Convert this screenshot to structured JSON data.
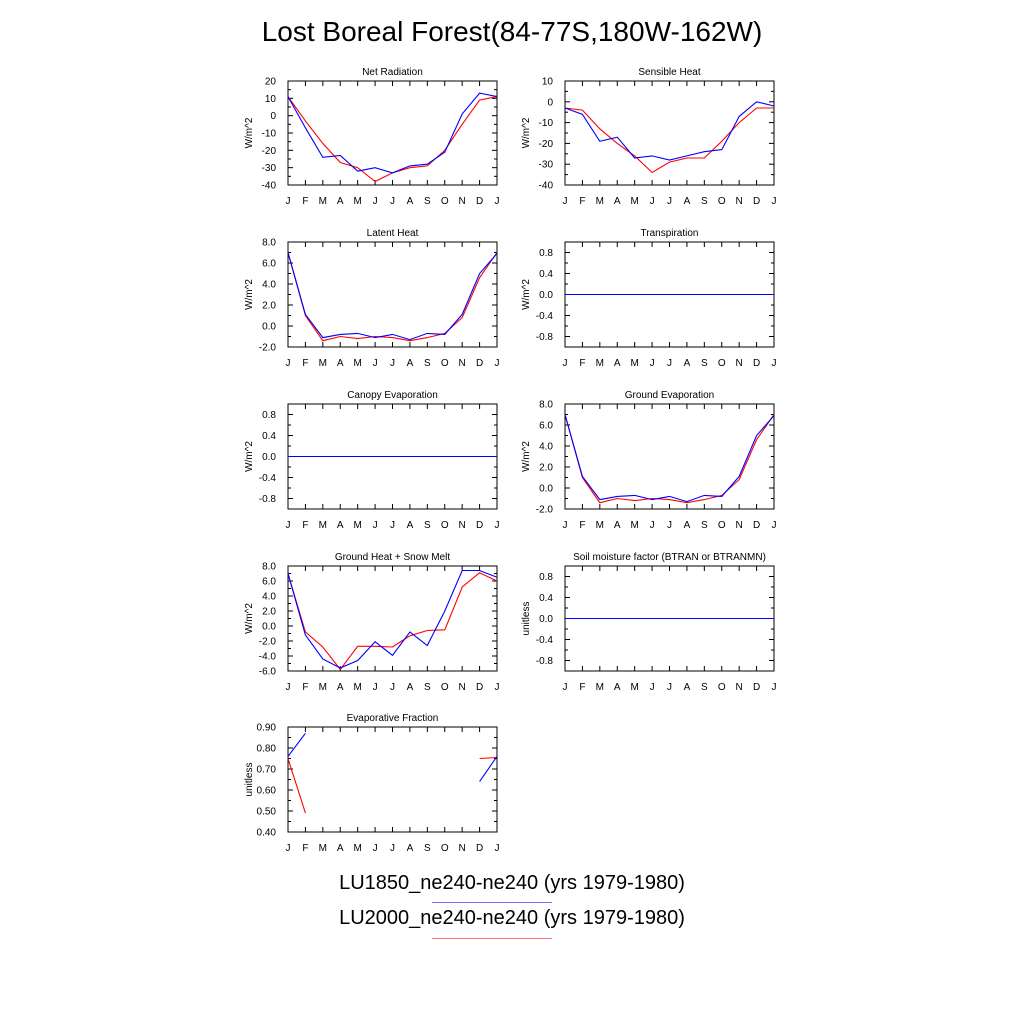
{
  "title": "Lost Boreal Forest(84-77S,180W-162W)",
  "months": [
    "J",
    "F",
    "M",
    "A",
    "M",
    "J",
    "J",
    "A",
    "S",
    "O",
    "N",
    "D",
    "J"
  ],
  "colors": {
    "series1": "#0000ff",
    "series2": "#ff0000"
  },
  "legend": [
    {
      "label": "LU1850_ne240-ne240 (yrs 1979-1980)",
      "color": "#0000ff"
    },
    {
      "label": "LU2000_ne240-ne240 (yrs 1979-1980)",
      "color": "#ff0000"
    }
  ],
  "chart_data": [
    {
      "type": "line",
      "title": "Net Radiation",
      "ylabel": "W/m^2",
      "ylim": [
        -40,
        20
      ],
      "yticks": [
        20,
        10,
        0,
        -10,
        -20,
        -30,
        -40
      ],
      "ytick_labels": [
        "20",
        "10",
        "0",
        "-10",
        "-20",
        "-30",
        "-40"
      ],
      "series": [
        {
          "name": "LU1850_ne240-ne240 (yrs 1979-1980)",
          "values": [
            11,
            -7,
            -24,
            -23,
            -32,
            -30,
            -33,
            -29,
            -28,
            -21,
            1,
            13,
            11
          ]
        },
        {
          "name": "LU2000_ne240-ne240 (yrs 1979-1980)",
          "values": [
            11,
            -3,
            -16,
            -27,
            -30,
            -38,
            -33,
            -30,
            -29,
            -20,
            -5,
            9,
            11
          ]
        }
      ]
    },
    {
      "type": "line",
      "title": "Sensible Heat",
      "ylabel": "W/m^2",
      "ylim": [
        -40,
        10
      ],
      "yticks": [
        10,
        0,
        -10,
        -20,
        -30,
        -40
      ],
      "ytick_labels": [
        "10",
        "0",
        "-10",
        "-20",
        "-30",
        "-40"
      ],
      "series": [
        {
          "name": "LU1850_ne240-ne240 (yrs 1979-1980)",
          "values": [
            -3,
            -6,
            -19,
            -17,
            -27,
            -26,
            -28,
            -26,
            -24,
            -23,
            -7,
            0,
            -2
          ]
        },
        {
          "name": "LU2000_ne240-ne240 (yrs 1979-1980)",
          "values": [
            -3,
            -4,
            -13,
            -20,
            -26,
            -34,
            -29,
            -27,
            -27,
            -19,
            -10,
            -3,
            -3
          ]
        }
      ]
    },
    {
      "type": "line",
      "title": "Latent Heat",
      "ylabel": "W/m^2",
      "ylim": [
        -2,
        8
      ],
      "yticks": [
        8,
        6,
        4,
        2,
        0,
        -2
      ],
      "ytick_labels": [
        "8.0",
        "6.0",
        "4.0",
        "2.0",
        "0.0",
        "-2.0"
      ],
      "series": [
        {
          "name": "LU1850_ne240-ne240 (yrs 1979-1980)",
          "values": [
            7,
            1.1,
            -1.1,
            -0.8,
            -0.7,
            -1.1,
            -0.8,
            -1.3,
            -0.7,
            -0.8,
            1.1,
            5,
            6.9
          ]
        },
        {
          "name": "LU2000_ne240-ne240 (yrs 1979-1980)",
          "values": [
            7,
            1,
            -1.4,
            -1,
            -1.2,
            -1,
            -1.1,
            -1.4,
            -1.1,
            -0.7,
            0.8,
            4.6,
            7
          ]
        }
      ]
    },
    {
      "type": "line",
      "title": "Transpiration",
      "ylabel": "W/m^2",
      "ylim": [
        -1,
        1
      ],
      "yticks": [
        0.8,
        0.4,
        0,
        -0.4,
        -0.8
      ],
      "ytick_labels": [
        "0.8",
        "0.4",
        "0.0",
        "-0.4",
        "-0.8"
      ],
      "series": [
        {
          "name": "LU1850_ne240-ne240 (yrs 1979-1980)",
          "values": [
            0,
            0,
            0,
            0,
            0,
            0,
            0,
            0,
            0,
            0,
            0,
            0,
            0
          ]
        },
        {
          "name": "LU2000_ne240-ne240 (yrs 1979-1980)",
          "values": [
            0,
            0,
            0,
            0,
            0,
            0,
            0,
            0,
            0,
            0,
            0,
            0,
            0
          ]
        }
      ]
    },
    {
      "type": "line",
      "title": "Canopy Evaporation",
      "ylabel": "W/m^2",
      "ylim": [
        -1,
        1
      ],
      "yticks": [
        0.8,
        0.4,
        0,
        -0.4,
        -0.8
      ],
      "ytick_labels": [
        "0.8",
        "0.4",
        "0.0",
        "-0.4",
        "-0.8"
      ],
      "series": [
        {
          "name": "LU1850_ne240-ne240 (yrs 1979-1980)",
          "values": [
            0,
            0,
            0,
            0,
            0,
            0,
            0,
            0,
            0,
            0,
            0,
            0,
            0
          ]
        },
        {
          "name": "LU2000_ne240-ne240 (yrs 1979-1980)",
          "values": [
            0,
            0,
            0,
            0,
            0,
            0,
            0,
            0,
            0,
            0,
            0,
            0,
            0
          ]
        }
      ]
    },
    {
      "type": "line",
      "title": "Ground Evaporation",
      "ylabel": "W/m^2",
      "ylim": [
        -2,
        8
      ],
      "yticks": [
        8,
        6,
        4,
        2,
        0,
        -2
      ],
      "ytick_labels": [
        "8.0",
        "6.0",
        "4.0",
        "2.0",
        "0.0",
        "-2.0"
      ],
      "series": [
        {
          "name": "LU1850_ne240-ne240 (yrs 1979-1980)",
          "values": [
            7,
            1.1,
            -1.1,
            -0.8,
            -0.7,
            -1.1,
            -0.8,
            -1.3,
            -0.7,
            -0.8,
            1.1,
            5,
            6.9
          ]
        },
        {
          "name": "LU2000_ne240-ne240 (yrs 1979-1980)",
          "values": [
            7,
            1,
            -1.4,
            -1,
            -1.2,
            -1,
            -1.1,
            -1.4,
            -1.1,
            -0.7,
            0.8,
            4.6,
            7
          ]
        }
      ]
    },
    {
      "type": "line",
      "title": "Ground Heat + Snow Melt",
      "ylabel": "W/m^2",
      "ylim": [
        -6,
        8
      ],
      "yticks": [
        8,
        6,
        4,
        2,
        0,
        -2,
        -4,
        -6
      ],
      "ytick_labels": [
        "8.0",
        "6.0",
        "4.0",
        "2.0",
        "0.0",
        "-2.0",
        "-4.0",
        "-6.0"
      ],
      "series": [
        {
          "name": "LU1850_ne240-ne240 (yrs 1979-1980)",
          "values": [
            7,
            -1.2,
            -4.4,
            -5.6,
            -4.6,
            -2.1,
            -3.9,
            -0.8,
            -2.6,
            2,
            7.4,
            7.4,
            6.5
          ]
        },
        {
          "name": "LU2000_ne240-ne240 (yrs 1979-1980)",
          "values": [
            7,
            -0.8,
            -2.8,
            -5.8,
            -2.7,
            -2.7,
            -2.8,
            -1.3,
            -0.6,
            -0.5,
            5.2,
            7.1,
            6
          ]
        }
      ]
    },
    {
      "type": "line",
      "title": "Soil moisture factor (BTRAN or BTRANMN)",
      "ylabel": "unitless",
      "ylim": [
        -1,
        1
      ],
      "yticks": [
        0.8,
        0.4,
        0,
        -0.4,
        -0.8
      ],
      "ytick_labels": [
        "0.8",
        "0.4",
        "0.0",
        "-0.4",
        "-0.8"
      ],
      "series": [
        {
          "name": "LU1850_ne240-ne240 (yrs 1979-1980)",
          "values": [
            0,
            0,
            0,
            0,
            0,
            0,
            0,
            0,
            0,
            0,
            0,
            0,
            0
          ]
        },
        {
          "name": "LU2000_ne240-ne240 (yrs 1979-1980)",
          "values": [
            0,
            0,
            0,
            0,
            0,
            0,
            0,
            0,
            0,
            0,
            0,
            0,
            0
          ]
        }
      ]
    },
    {
      "type": "line",
      "title": "Evaporative Fraction",
      "ylabel": "unitless",
      "ylim": [
        0.4,
        0.9
      ],
      "yticks": [
        0.9,
        0.8,
        0.7,
        0.6,
        0.5,
        0.4
      ],
      "ytick_labels": [
        "0.90",
        "0.80",
        "0.70",
        "0.60",
        "0.50",
        "0.40"
      ],
      "series": [
        {
          "name": "LU1850_ne240-ne240 (yrs 1979-1980)",
          "values": [
            0.76,
            0.87,
            null,
            null,
            null,
            null,
            null,
            null,
            null,
            null,
            null,
            0.64,
            0.76
          ]
        },
        {
          "name": "LU2000_ne240-ne240 (yrs 1979-1980)",
          "values": [
            0.75,
            0.49,
            null,
            null,
            null,
            null,
            null,
            null,
            null,
            null,
            null,
            0.75,
            0.755
          ]
        }
      ]
    }
  ]
}
